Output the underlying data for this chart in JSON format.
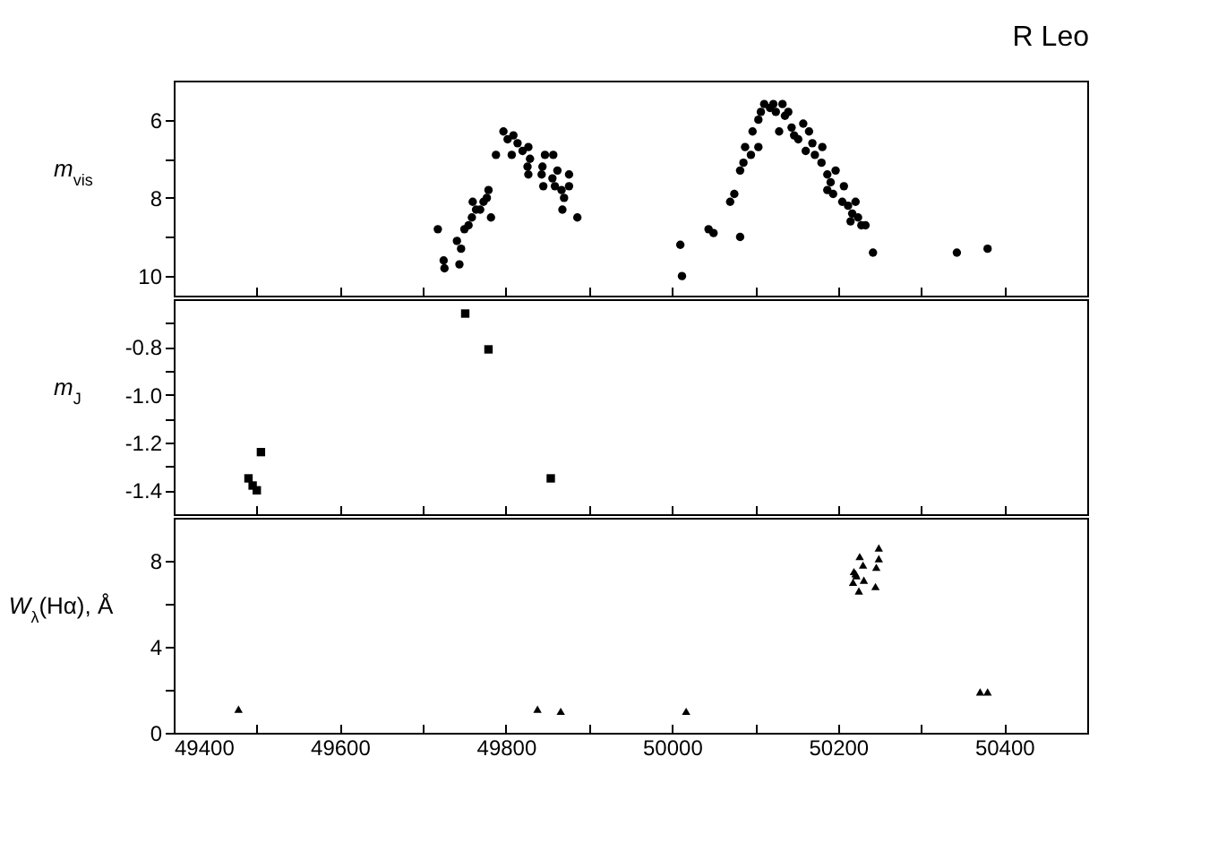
{
  "chart_data": [
    {
      "type": "scatter",
      "title": "R Leo",
      "ylabel": "m$_{vis}$",
      "marker": "circle",
      "tick_labels": "y",
      "xlim": [
        49400,
        50500
      ],
      "xticks": [
        49400,
        {
          "value": 49500,
          "label": null
        },
        49600,
        {
          "value": 49700,
          "label": null
        },
        49800,
        {
          "value": 49900,
          "label": null
        },
        50000,
        {
          "value": 50100,
          "label": null
        },
        50200,
        {
          "value": 50300,
          "label": null
        },
        50400,
        {
          "value": 50500,
          "label": null
        }
      ],
      "ylim": [
        10.5,
        5.0
      ],
      "yticks": [
        6,
        {
          "value": 7,
          "label": null
        },
        8,
        {
          "value": 9,
          "label": null
        },
        10
      ],
      "series": [
        {
          "color": "#000000",
          "x": [
            49718,
            49726,
            49725,
            49744,
            49746,
            49741,
            49750,
            49755,
            49759,
            49764,
            49769,
            49773,
            49777,
            49779,
            49760,
            49782,
            49788,
            49797,
            49802,
            49809,
            49807,
            49814,
            49820,
            49827,
            49829,
            49826,
            49827,
            49844,
            49847,
            49857,
            49843,
            49845,
            49856,
            49862,
            49859,
            49867,
            49870,
            49868,
            49876,
            49876,
            49886,
            50010,
            50012,
            50044,
            50050,
            50082,
            50070,
            50075,
            50082,
            50086,
            50088,
            50097,
            50095,
            50104,
            50104,
            50107,
            50111,
            50118,
            50122,
            50125,
            50129,
            50133,
            50136,
            50140,
            50144,
            50147,
            50152,
            50158,
            50165,
            50161,
            50169,
            50172,
            50181,
            50180,
            50187,
            50191,
            50187,
            50194,
            50197,
            50207,
            50205,
            50212,
            50217,
            50221,
            50215,
            50224,
            50228,
            50233,
            50242,
            50343,
            50380
          ],
          "values": [
            8.8,
            9.8,
            9.6,
            9.7,
            9.3,
            9.1,
            8.8,
            8.7,
            8.5,
            8.3,
            8.3,
            8.1,
            8.0,
            7.8,
            8.1,
            8.5,
            6.9,
            6.3,
            6.5,
            6.4,
            6.9,
            6.6,
            6.8,
            6.7,
            7.0,
            7.2,
            7.4,
            7.2,
            6.9,
            6.9,
            7.4,
            7.7,
            7.5,
            7.3,
            7.7,
            7.8,
            8.0,
            8.3,
            7.4,
            7.7,
            8.5,
            9.2,
            10.0,
            8.8,
            8.9,
            9.0,
            8.1,
            7.9,
            7.3,
            7.1,
            6.7,
            6.3,
            6.9,
            6.7,
            6.0,
            5.8,
            5.6,
            5.7,
            5.6,
            5.8,
            6.3,
            5.6,
            5.9,
            5.8,
            6.2,
            6.4,
            6.5,
            6.1,
            6.3,
            6.8,
            6.6,
            6.9,
            6.7,
            7.1,
            7.4,
            7.6,
            7.8,
            7.9,
            7.3,
            7.7,
            8.1,
            8.2,
            8.4,
            8.1,
            8.6,
            8.5,
            8.7,
            8.7,
            9.4,
            9.4,
            9.3
          ]
        }
      ]
    },
    {
      "type": "scatter",
      "ylabel": "m$_{J}$",
      "marker": "square",
      "tick_labels": "y",
      "xlim": [
        49400,
        50500
      ],
      "xticks": [
        49400,
        {
          "value": 49500,
          "label": null
        },
        49600,
        {
          "value": 49700,
          "label": null
        },
        49800,
        {
          "value": 49900,
          "label": null
        },
        50000,
        {
          "value": 50100,
          "label": null
        },
        50200,
        {
          "value": 50300,
          "label": null
        },
        50400,
        {
          "value": 50500,
          "label": null
        }
      ],
      "ylim": [
        -1.5,
        -0.6
      ],
      "yticks": [
        {
          "value": -0.7,
          "label": null
        },
        -0.8,
        {
          "value": -0.9,
          "label": null
        },
        {
          "value": -1.0,
          "label": "-1.0"
        },
        {
          "value": -1.1,
          "label": null
        },
        -1.2,
        {
          "value": -1.3,
          "label": null
        },
        -1.4
      ],
      "series": [
        {
          "color": "#000000",
          "x": [
            49490,
            49495,
            49500,
            49505,
            49751,
            49779,
            49854
          ],
          "values": [
            -1.35,
            -1.38,
            -1.4,
            -1.24,
            -0.66,
            -0.81,
            -1.35
          ]
        }
      ]
    },
    {
      "type": "scatter",
      "ylabel": "W$_{λ}$(Hα),  Å",
      "marker": "triangle",
      "xlim": [
        49400,
        50500
      ],
      "xticks": [
        49400,
        {
          "value": 49500,
          "label": null
        },
        49600,
        {
          "value": 49700,
          "label": null
        },
        49800,
        {
          "value": 49900,
          "label": null
        },
        50000,
        {
          "value": 50100,
          "label": null
        },
        50200,
        {
          "value": 50300,
          "label": null
        },
        50400,
        {
          "value": 50500,
          "label": null
        }
      ],
      "ylim": [
        0,
        10
      ],
      "yticks": [
        0,
        {
          "value": 2,
          "label": null
        },
        4,
        {
          "value": 6,
          "label": null
        },
        8
      ],
      "series": [
        {
          "color": "#000000",
          "x": [
            49478,
            49838,
            49866,
            50017,
            50226,
            50230,
            50219,
            50221,
            50222,
            50231,
            50218,
            50225,
            50249,
            50249,
            50246,
            50245,
            50371,
            50380
          ],
          "values": [
            1.1,
            1.1,
            1.0,
            1.0,
            8.2,
            7.8,
            7.5,
            7.4,
            7.3,
            7.1,
            7.0,
            6.6,
            8.6,
            8.1,
            7.7,
            6.8,
            1.9,
            1.9
          ]
        }
      ]
    }
  ]
}
